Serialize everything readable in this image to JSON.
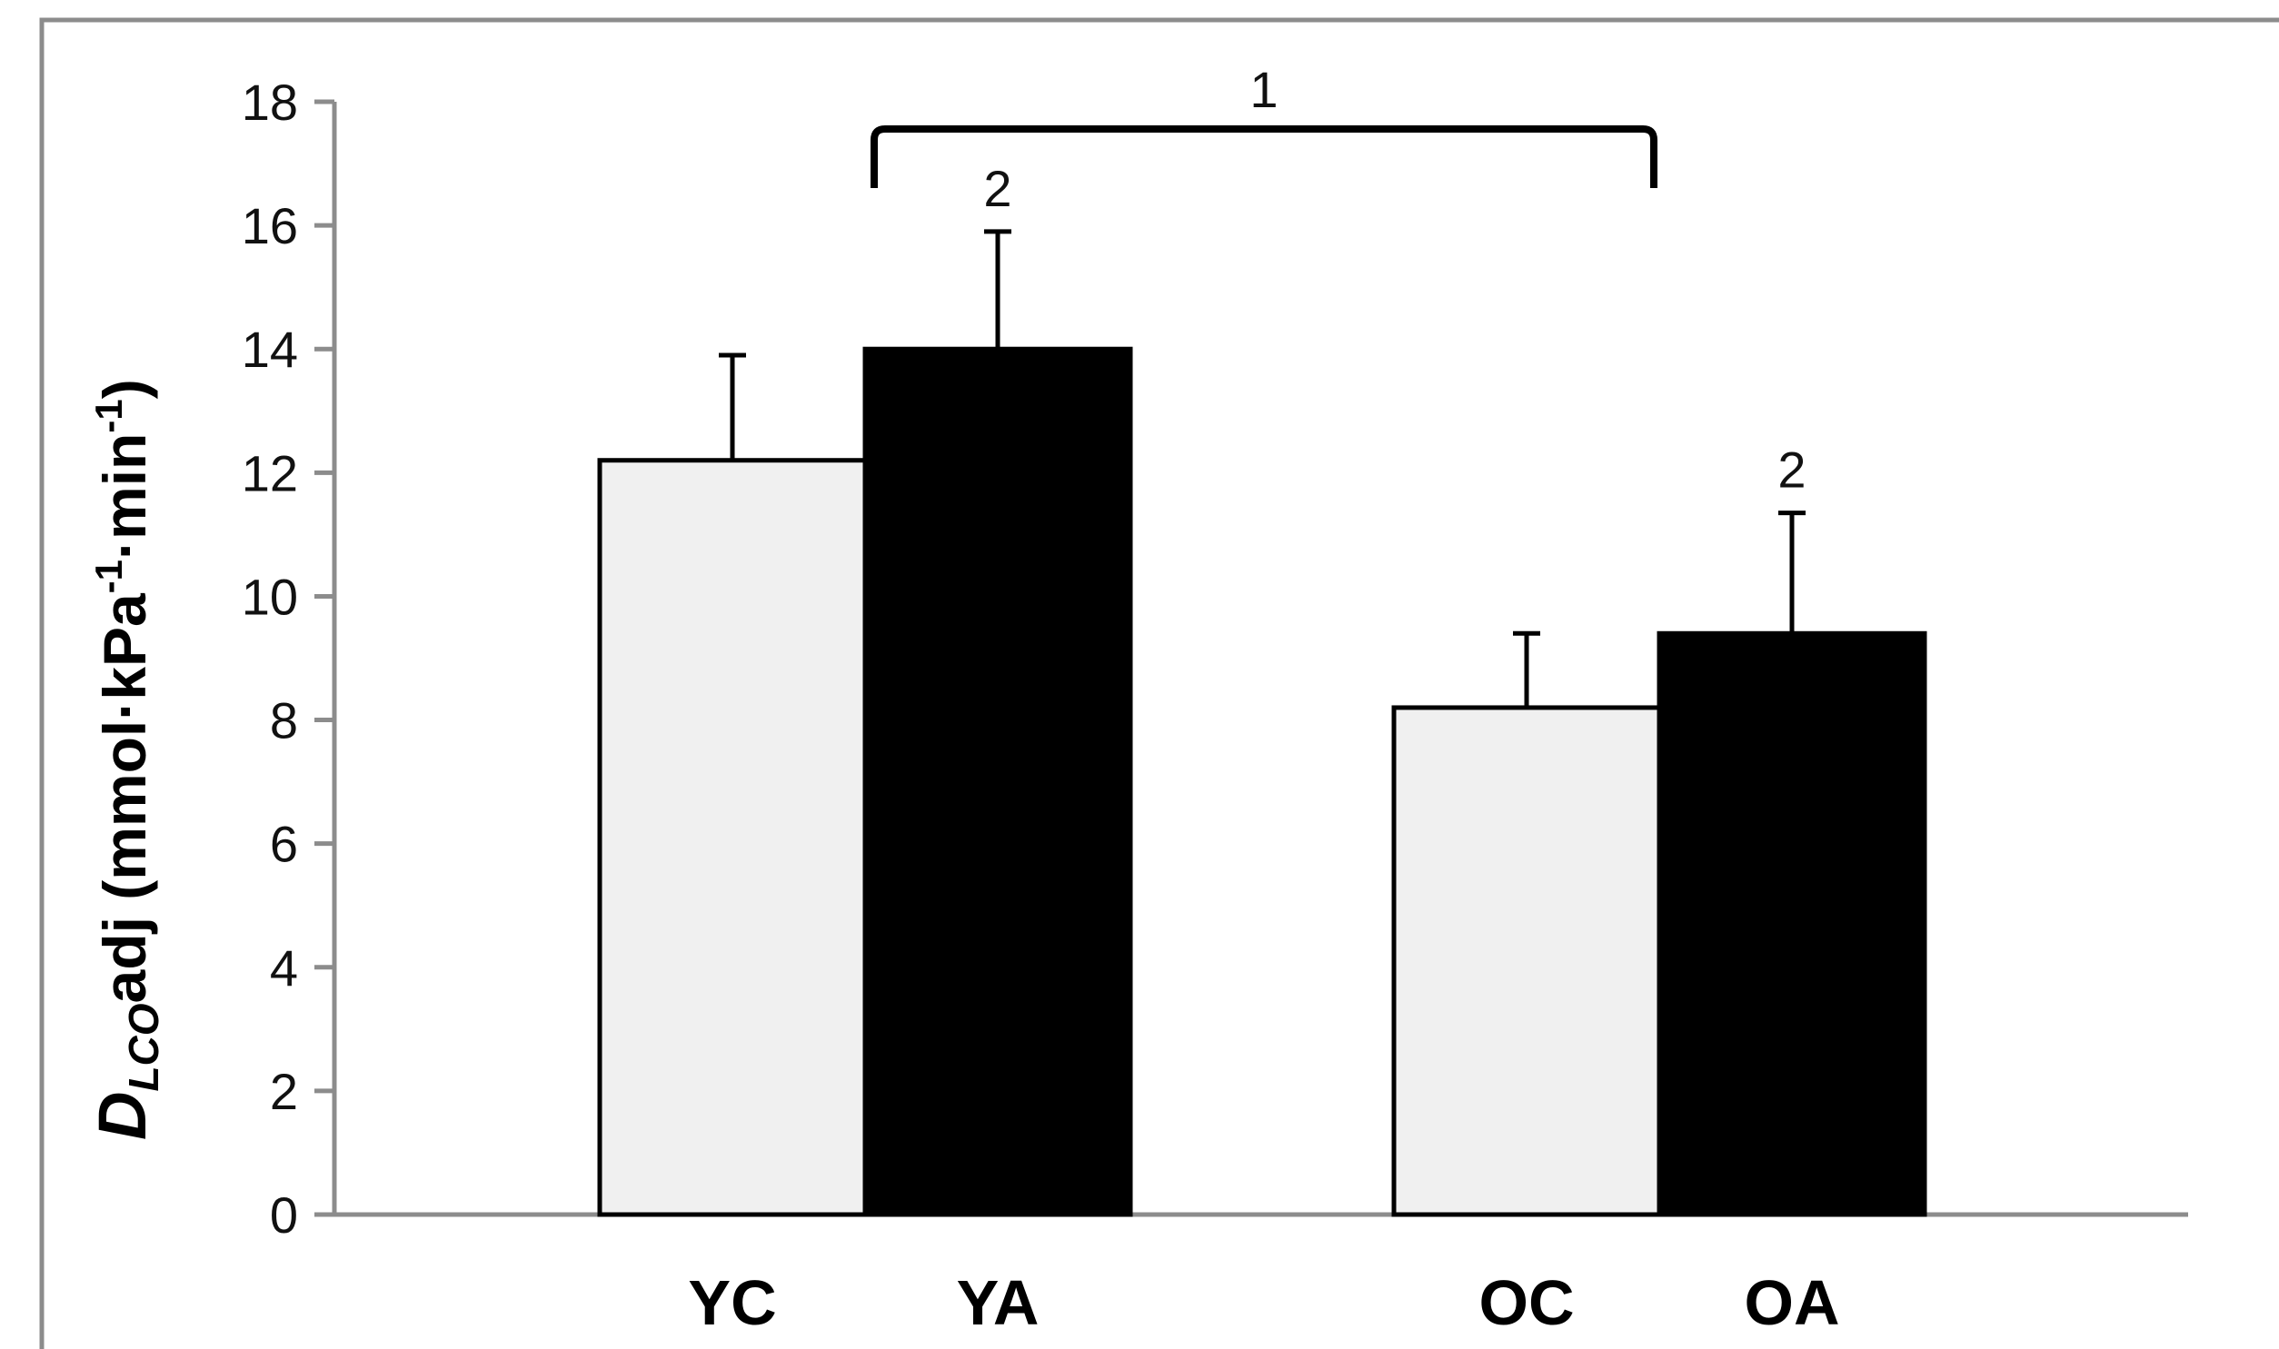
{
  "chart_data": {
    "type": "bar",
    "ylabel": {
      "d": "D",
      "sub": "LCO",
      "adj": "adj (mmol·kPa",
      "sup1": "-1",
      "mid": "·min",
      "sup2": "-1",
      "close": ")"
    },
    "ylim": [
      0,
      18
    ],
    "yticks": [
      0,
      2,
      4,
      6,
      8,
      10,
      12,
      14,
      16,
      18
    ],
    "grid": false,
    "categories": [
      "YC",
      "YA",
      "OC",
      "OA"
    ],
    "values": [
      12.2,
      14.0,
      8.2,
      9.4
    ],
    "errors": [
      1.7,
      1.9,
      1.2,
      1.95
    ],
    "colors": [
      "#f0f0f0",
      "#000000",
      "#f0f0f0",
      "#000000"
    ],
    "bar_annotations": [
      "",
      "2",
      "",
      "2"
    ],
    "bracket": {
      "from": "YA",
      "to": "OC",
      "label": "1"
    }
  }
}
